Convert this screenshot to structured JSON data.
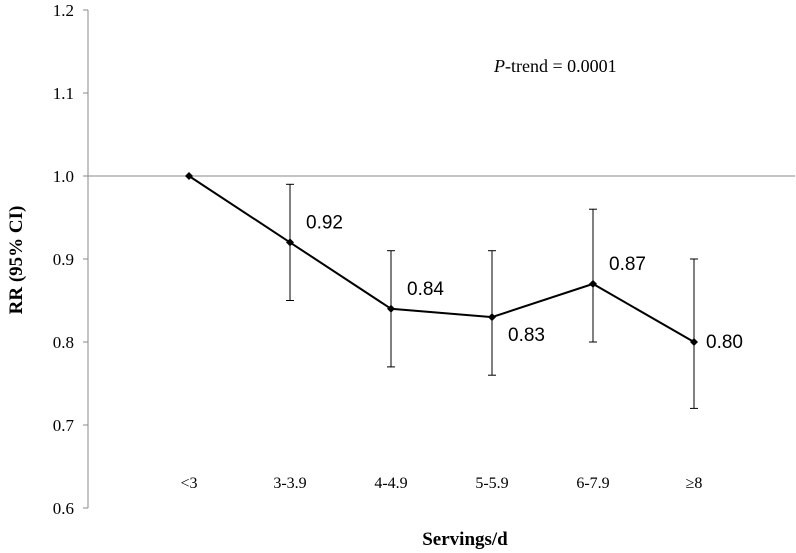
{
  "chart_data": {
    "type": "line",
    "xlabel": "Servings/d",
    "ylabel": "RR (95% CI)",
    "ylim": [
      0.6,
      1.2
    ],
    "yticks": [
      "0.6",
      "0.7",
      "0.8",
      "0.9",
      "1.0",
      "1.1",
      "1.2"
    ],
    "reference_line": 1.0,
    "categories": [
      "<3",
      "3-3.9",
      "4-4.9",
      "5-5.9",
      "6-7.9",
      "≥8"
    ],
    "values": [
      1.0,
      0.92,
      0.84,
      0.83,
      0.87,
      0.8
    ],
    "ci_lower": [
      null,
      0.85,
      0.77,
      0.76,
      0.8,
      0.72
    ],
    "ci_upper": [
      null,
      0.99,
      0.91,
      0.91,
      0.96,
      0.9
    ],
    "data_labels": [
      "",
      "0.92",
      "0.84",
      "0.83",
      "0.87",
      "0.80"
    ],
    "annotation": {
      "italic": "P",
      "text": "-trend = 0.0001"
    },
    "grid": false,
    "legend": "none"
  }
}
